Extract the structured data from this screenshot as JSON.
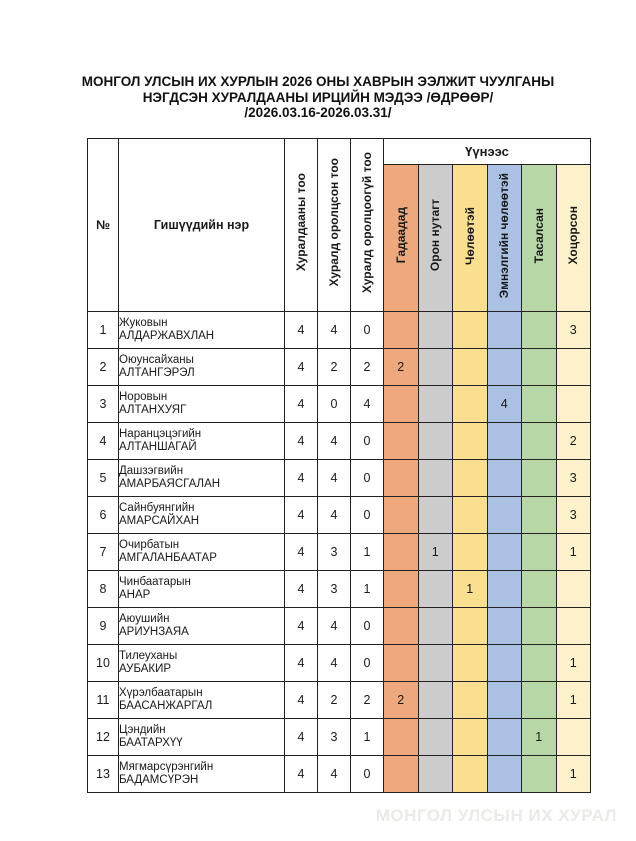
{
  "page": {
    "title": {
      "line1": "МОНГОЛ УЛСЫН ИХ ХУРЛЫН 2026 ОНЫ ХАВРЫН ЭЭЛЖИТ ЧУУЛГАНЫ",
      "line2": "НЭГДСЭН ХУРАЛДААНЫ ИРЦИЙН МЭДЭЭ /ӨДРӨӨР/",
      "line3": "/2026.03.16-2026.03.31/"
    },
    "watermark": "МОНГОЛ УЛСЫН ИХ ХУРАЛ"
  },
  "table": {
    "headers": {
      "num": "№",
      "name": "Гишүүдийн нэр",
      "session_count": "Хуралдааны тоо",
      "attended_count": "Хуралд оролцсон тоо",
      "not_attended_count": "Хуралд оролцоогүй тоо",
      "of_which": "Үүнээс",
      "breakdown": [
        {
          "label": "Гадаадад",
          "color": "#eda87e"
        },
        {
          "label": "Орон нутагт",
          "color": "#cccccc"
        },
        {
          "label": "Чөлөөтэй",
          "color": "#fadf90"
        },
        {
          "label": "Эмнэлгийн чөлөөтэй",
          "color": "#abc1e3"
        },
        {
          "label": "Тасалсан",
          "color": "#b8d7a6"
        },
        {
          "label": "Хоцорсон",
          "color": "#fcf1ca"
        }
      ]
    },
    "rows": [
      {
        "num": "1",
        "surname": "Жуковын",
        "given_name": "АЛДАРЖАВХЛАН",
        "sessions": "4",
        "attended": "4",
        "missed": "0",
        "breakdown": [
          "",
          "",
          "",
          "",
          "",
          "3"
        ]
      },
      {
        "num": "2",
        "surname": "Оюунсайханы",
        "given_name": "АЛТАНГЭРЭЛ",
        "sessions": "4",
        "attended": "2",
        "missed": "2",
        "breakdown": [
          "2",
          "",
          "",
          "",
          "",
          ""
        ]
      },
      {
        "num": "3",
        "surname": "Норовын",
        "given_name": "АЛТАНХУЯГ",
        "sessions": "4",
        "attended": "0",
        "missed": "4",
        "breakdown": [
          "",
          "",
          "",
          "4",
          "",
          ""
        ]
      },
      {
        "num": "4",
        "surname": "Наранцэцэгийн",
        "given_name": "АЛТАНШАГАЙ",
        "sessions": "4",
        "attended": "4",
        "missed": "0",
        "breakdown": [
          "",
          "",
          "",
          "",
          "",
          "2"
        ]
      },
      {
        "num": "5",
        "surname": "Дашзэгвийн",
        "given_name": "АМАРБАЯСГАЛАН",
        "sessions": "4",
        "attended": "4",
        "missed": "0",
        "breakdown": [
          "",
          "",
          "",
          "",
          "",
          "3"
        ]
      },
      {
        "num": "6",
        "surname": "Сайнбуянгийн",
        "given_name": "АМАРСАЙХАН",
        "sessions": "4",
        "attended": "4",
        "missed": "0",
        "breakdown": [
          "",
          "",
          "",
          "",
          "",
          "3"
        ]
      },
      {
        "num": "7",
        "surname": "Очирбатын",
        "given_name": "АМГАЛАНБААТАР",
        "sessions": "4",
        "attended": "3",
        "missed": "1",
        "breakdown": [
          "",
          "1",
          "",
          "",
          "",
          "1"
        ]
      },
      {
        "num": "8",
        "surname": "Чинбаатарын",
        "given_name": "АНАР",
        "sessions": "4",
        "attended": "3",
        "missed": "1",
        "breakdown": [
          "",
          "",
          "1",
          "",
          "",
          ""
        ]
      },
      {
        "num": "9",
        "surname": "Аюушийн",
        "given_name": "АРИУНЗАЯА",
        "sessions": "4",
        "attended": "4",
        "missed": "0",
        "breakdown": [
          "",
          "",
          "",
          "",
          "",
          ""
        ]
      },
      {
        "num": "10",
        "surname": "Тилеуханы",
        "given_name": "АУБАКИР",
        "sessions": "4",
        "attended": "4",
        "missed": "0",
        "breakdown": [
          "",
          "",
          "",
          "",
          "",
          "1"
        ]
      },
      {
        "num": "11",
        "surname": "Хүрэлбаатарын",
        "given_name": "БААСАНЖАРГАЛ",
        "sessions": "4",
        "attended": "2",
        "missed": "2",
        "breakdown": [
          "2",
          "",
          "",
          "",
          "",
          "1"
        ]
      },
      {
        "num": "12",
        "surname": "Цэндийн",
        "given_name": "БААТАРХҮҮ",
        "sessions": "4",
        "attended": "3",
        "missed": "1",
        "breakdown": [
          "",
          "",
          "",
          "",
          "1",
          ""
        ]
      },
      {
        "num": "13",
        "surname": "Мягмарсүрэнгийн",
        "given_name": "БАДАМСҮРЭН",
        "sessions": "4",
        "attended": "4",
        "missed": "0",
        "breakdown": [
          "",
          "",
          "",
          "",
          "",
          "1"
        ]
      }
    ]
  }
}
